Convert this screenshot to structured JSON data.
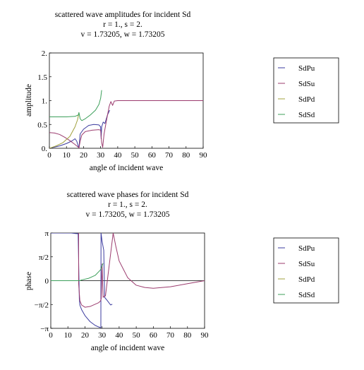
{
  "colors": {
    "SdPu": "#3b3b9f",
    "SdSu": "#9b3b6e",
    "SdPd": "#a0a03c",
    "SdSd": "#3c9f5a"
  },
  "chart_data": [
    {
      "type": "line",
      "title": "scattered wave amplitudes for incident Sd",
      "subtitle_1": "r = 1., s = 2.",
      "subtitle_2": "v = 1.73205, w = 1.73205",
      "xlabel": "angle of incident wave",
      "ylabel": "amplitude",
      "xlim": [
        0,
        90
      ],
      "ylim": [
        0,
        2
      ],
      "xticks": [
        "0",
        "10",
        "20",
        "30",
        "40",
        "50",
        "60",
        "70",
        "80",
        "90"
      ],
      "yticks": [
        "0.",
        "0.5",
        "1.",
        "1.5",
        "2."
      ],
      "legend_position": "right",
      "series": [
        {
          "name": "SdPu",
          "points": [
            [
              0,
              0
            ],
            [
              6,
              0.05
            ],
            [
              10,
              0.1
            ],
            [
              13,
              0.15
            ],
            [
              15,
              0.2
            ],
            [
              16,
              0.15
            ],
            [
              17.3,
              0
            ],
            [
              18,
              0.3
            ],
            [
              20,
              0.4
            ],
            [
              23,
              0.48
            ],
            [
              26,
              0.5
            ],
            [
              29,
              0.49
            ],
            [
              30,
              0.45
            ],
            [
              30.3,
              0.2
            ],
            [
              30.6,
              0.45
            ],
            [
              31.5,
              0.55
            ],
            [
              32.5,
              0.52
            ],
            [
              34,
              0.7
            ],
            [
              35.3,
              0.8
            ]
          ]
        },
        {
          "name": "SdSu",
          "points": [
            [
              0,
              0.33
            ],
            [
              3,
              0.32
            ],
            [
              6,
              0.29
            ],
            [
              9,
              0.23
            ],
            [
              12,
              0.16
            ],
            [
              15,
              0.08
            ],
            [
              17,
              0.02
            ],
            [
              17.3,
              0
            ],
            [
              18,
              0.15
            ],
            [
              19,
              0.28
            ],
            [
              21,
              0.35
            ],
            [
              25,
              0.38
            ],
            [
              29,
              0.39
            ],
            [
              30,
              0.38
            ],
            [
              30.6,
              0.12
            ],
            [
              31.2,
              0.02
            ],
            [
              32,
              0.3
            ],
            [
              33.5,
              0.6
            ],
            [
              35,
              0.88
            ],
            [
              36,
              0.98
            ],
            [
              37,
              0.9
            ],
            [
              38,
              0.99
            ],
            [
              40,
              1
            ],
            [
              60,
              1
            ],
            [
              90,
              1
            ]
          ]
        },
        {
          "name": "SdPd",
          "points": [
            [
              0,
              0
            ],
            [
              4,
              0.05
            ],
            [
              8,
              0.12
            ],
            [
              12,
              0.25
            ],
            [
              15,
              0.45
            ],
            [
              16.5,
              0.6
            ],
            [
              17.3,
              0.75
            ]
          ]
        },
        {
          "name": "SdSd",
          "points": [
            [
              0,
              0.66
            ],
            [
              10,
              0.66
            ],
            [
              15,
              0.67
            ],
            [
              17,
              0.7
            ],
            [
              17.3,
              0.75
            ],
            [
              18,
              0.62
            ],
            [
              19,
              0.58
            ],
            [
              21,
              0.62
            ],
            [
              24,
              0.7
            ],
            [
              27,
              0.8
            ],
            [
              29,
              0.92
            ],
            [
              30,
              1.05
            ],
            [
              30.6,
              1.22
            ]
          ]
        }
      ]
    },
    {
      "type": "line",
      "title": "scattered wave phases for incident Sd",
      "subtitle_1": "r = 1., s = 2.",
      "subtitle_2": "v = 1.73205, w = 1.73205",
      "xlabel": "angle of incident wave",
      "ylabel": "phase",
      "xlim": [
        0,
        90
      ],
      "ylim": [
        -3.14159,
        3.14159
      ],
      "xticks": [
        "0",
        "10",
        "20",
        "30",
        "40",
        "50",
        "60",
        "70",
        "80",
        "90"
      ],
      "yticks": [
        "−π",
        "−π/2",
        "0",
        "π/2",
        "π"
      ],
      "legend_position": "right",
      "series": [
        {
          "name": "SdPu",
          "points": [
            [
              0,
              3.14
            ],
            [
              12,
              3.14
            ],
            [
              15,
              3.1
            ],
            [
              16,
              3.1
            ],
            [
              16.7,
              -1.2
            ],
            [
              17,
              -1.6
            ],
            [
              18,
              -1.9
            ],
            [
              20,
              -2.3
            ],
            [
              23,
              -2.7
            ],
            [
              26,
              -2.95
            ],
            [
              28,
              -3.05
            ],
            [
              29.3,
              -3.1
            ],
            [
              29.4,
              3.14
            ],
            [
              30,
              2.6
            ],
            [
              31,
              2
            ],
            [
              31.5,
              -1.1
            ],
            [
              33,
              -1.3
            ],
            [
              35,
              -1.6
            ],
            [
              36,
              -1.55
            ]
          ]
        },
        {
          "name": "SdSu",
          "points": [
            [
              16.3,
              3.14
            ],
            [
              16.3,
              -0.2
            ],
            [
              17,
              -1.3
            ],
            [
              18,
              -1.6
            ],
            [
              20,
              -1.75
            ],
            [
              23,
              -1.7
            ],
            [
              26,
              -1.55
            ],
            [
              28,
              -1.45
            ],
            [
              29,
              -1.35
            ],
            [
              29.5,
              -1.2
            ],
            [
              30,
              1.1
            ],
            [
              30.6,
              -1.1
            ],
            [
              31.5,
              -1
            ],
            [
              32,
              -1
            ],
            [
              36.5,
              3.14
            ],
            [
              38,
              2.3
            ],
            [
              40,
              1.3
            ],
            [
              45,
              0.2
            ],
            [
              50,
              -0.3
            ],
            [
              55,
              -0.45
            ],
            [
              60,
              -0.5
            ],
            [
              70,
              -0.4
            ],
            [
              80,
              -0.2
            ],
            [
              90,
              0
            ]
          ]
        },
        {
          "name": "SdPd",
          "points": [
            [
              0,
              0
            ],
            [
              17.3,
              0
            ]
          ]
        },
        {
          "name": "SdSd",
          "points": [
            [
              0,
              0
            ],
            [
              17,
              0
            ],
            [
              18,
              0.05
            ],
            [
              22,
              0.15
            ],
            [
              26,
              0.35
            ],
            [
              29,
              0.7
            ],
            [
              30.6,
              1.15
            ]
          ]
        }
      ]
    }
  ]
}
